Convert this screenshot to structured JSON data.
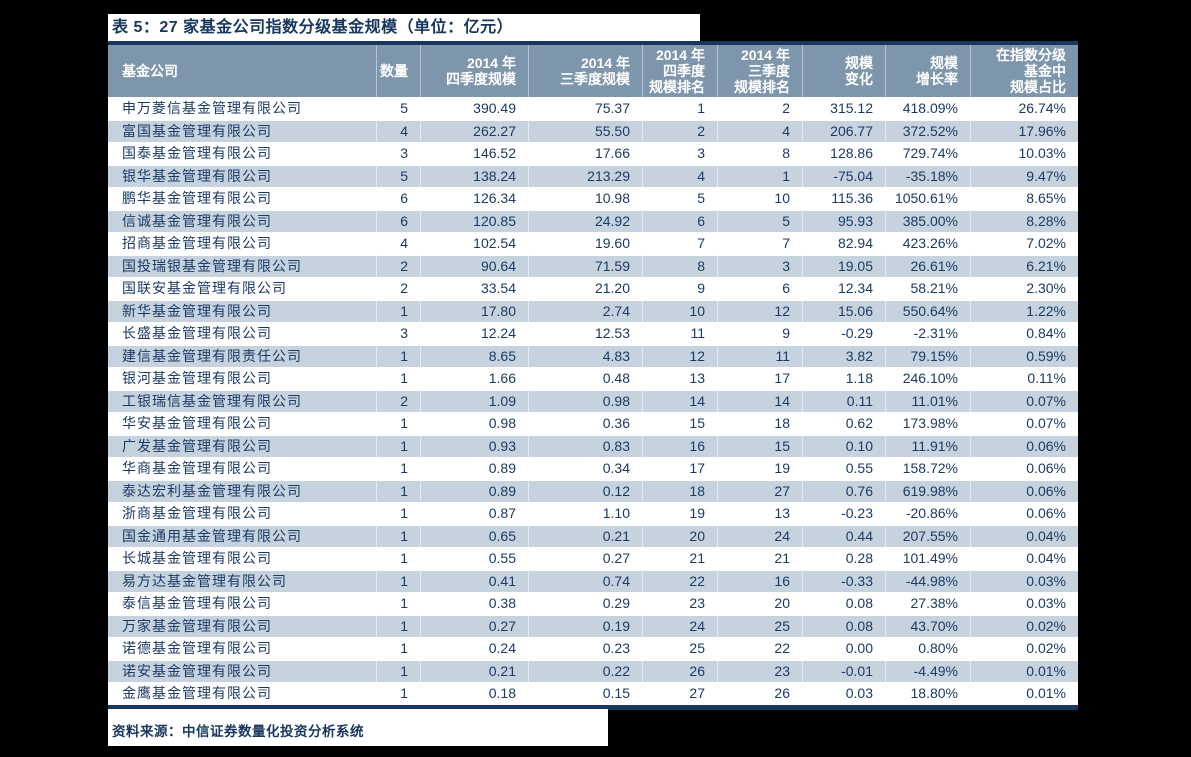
{
  "title": "表 5：27 家基金公司指数分级基金规模（单位：亿元）",
  "colors": {
    "page_bg": "#000000",
    "panel_bg": "#FFFFFF",
    "title_text": "#17375E",
    "rule": "#17375E",
    "header_bg": "#7D96AC",
    "header_text": "#FFFFFF",
    "row_alt_bg": "#C6D3DF",
    "body_text": "#1B3A64"
  },
  "table": {
    "columns": [
      {
        "key": "fund-company",
        "label": "基金公司",
        "align": "left"
      },
      {
        "key": "fund-count",
        "label": "数量",
        "align": "right"
      },
      {
        "key": "q4-2014-scale",
        "label": "2014 年\n四季度规模",
        "align": "right"
      },
      {
        "key": "q3-2014-scale",
        "label": "2014 年\n三季度规模",
        "align": "right"
      },
      {
        "key": "q4-2014-rank",
        "label": "2014 年\n四季度\n规模排名",
        "align": "right"
      },
      {
        "key": "q3-2014-rank",
        "label": "2014 年\n三季度\n规模排名",
        "align": "right"
      },
      {
        "key": "scale-change",
        "label": "规模\n变化",
        "align": "right"
      },
      {
        "key": "scale-growth",
        "label": "规模\n增长率",
        "align": "right"
      },
      {
        "key": "index-share",
        "label": "在指数分级\n基金中\n规模占比",
        "align": "right"
      }
    ],
    "rows": [
      [
        "申万菱信基金管理有限公司",
        "5",
        "390.49",
        "75.37",
        "1",
        "2",
        "315.12",
        "418.09%",
        "26.74%"
      ],
      [
        "富国基金管理有限公司",
        "4",
        "262.27",
        "55.50",
        "2",
        "4",
        "206.77",
        "372.52%",
        "17.96%"
      ],
      [
        "国泰基金管理有限公司",
        "3",
        "146.52",
        "17.66",
        "3",
        "8",
        "128.86",
        "729.74%",
        "10.03%"
      ],
      [
        "银华基金管理有限公司",
        "5",
        "138.24",
        "213.29",
        "4",
        "1",
        "-75.04",
        "-35.18%",
        "9.47%"
      ],
      [
        "鹏华基金管理有限公司",
        "6",
        "126.34",
        "10.98",
        "5",
        "10",
        "115.36",
        "1050.61%",
        "8.65%"
      ],
      [
        "信诚基金管理有限公司",
        "6",
        "120.85",
        "24.92",
        "6",
        "5",
        "95.93",
        "385.00%",
        "8.28%"
      ],
      [
        "招商基金管理有限公司",
        "4",
        "102.54",
        "19.60",
        "7",
        "7",
        "82.94",
        "423.26%",
        "7.02%"
      ],
      [
        "国投瑞银基金管理有限公司",
        "2",
        "90.64",
        "71.59",
        "8",
        "3",
        "19.05",
        "26.61%",
        "6.21%"
      ],
      [
        "国联安基金管理有限公司",
        "2",
        "33.54",
        "21.20",
        "9",
        "6",
        "12.34",
        "58.21%",
        "2.30%"
      ],
      [
        "新华基金管理有限公司",
        "1",
        "17.80",
        "2.74",
        "10",
        "12",
        "15.06",
        "550.64%",
        "1.22%"
      ],
      [
        "长盛基金管理有限公司",
        "3",
        "12.24",
        "12.53",
        "11",
        "9",
        "-0.29",
        "-2.31%",
        "0.84%"
      ],
      [
        "建信基金管理有限责任公司",
        "1",
        "8.65",
        "4.83",
        "12",
        "11",
        "3.82",
        "79.15%",
        "0.59%"
      ],
      [
        "银河基金管理有限公司",
        "1",
        "1.66",
        "0.48",
        "13",
        "17",
        "1.18",
        "246.10%",
        "0.11%"
      ],
      [
        "工银瑞信基金管理有限公司",
        "2",
        "1.09",
        "0.98",
        "14",
        "14",
        "0.11",
        "11.01%",
        "0.07%"
      ],
      [
        "华安基金管理有限公司",
        "1",
        "0.98",
        "0.36",
        "15",
        "18",
        "0.62",
        "173.98%",
        "0.07%"
      ],
      [
        "广发基金管理有限公司",
        "1",
        "0.93",
        "0.83",
        "16",
        "15",
        "0.10",
        "11.91%",
        "0.06%"
      ],
      [
        "华商基金管理有限公司",
        "1",
        "0.89",
        "0.34",
        "17",
        "19",
        "0.55",
        "158.72%",
        "0.06%"
      ],
      [
        "泰达宏利基金管理有限公司",
        "1",
        "0.89",
        "0.12",
        "18",
        "27",
        "0.76",
        "619.98%",
        "0.06%"
      ],
      [
        "浙商基金管理有限公司",
        "1",
        "0.87",
        "1.10",
        "19",
        "13",
        "-0.23",
        "-20.86%",
        "0.06%"
      ],
      [
        "国金通用基金管理有限公司",
        "1",
        "0.65",
        "0.21",
        "20",
        "24",
        "0.44",
        "207.55%",
        "0.04%"
      ],
      [
        "长城基金管理有限公司",
        "1",
        "0.55",
        "0.27",
        "21",
        "21",
        "0.28",
        "101.49%",
        "0.04%"
      ],
      [
        "易方达基金管理有限公司",
        "1",
        "0.41",
        "0.74",
        "22",
        "16",
        "-0.33",
        "-44.98%",
        "0.03%"
      ],
      [
        "泰信基金管理有限公司",
        "1",
        "0.38",
        "0.29",
        "23",
        "20",
        "0.08",
        "27.38%",
        "0.03%"
      ],
      [
        "万家基金管理有限公司",
        "1",
        "0.27",
        "0.19",
        "24",
        "25",
        "0.08",
        "43.70%",
        "0.02%"
      ],
      [
        "诺德基金管理有限公司",
        "1",
        "0.24",
        "0.23",
        "25",
        "22",
        "0.00",
        "0.80%",
        "0.02%"
      ],
      [
        "诺安基金管理有限公司",
        "1",
        "0.21",
        "0.22",
        "26",
        "23",
        "-0.01",
        "-4.49%",
        "0.01%"
      ],
      [
        "金鹰基金管理有限公司",
        "1",
        "0.18",
        "0.15",
        "27",
        "26",
        "0.03",
        "18.80%",
        "0.01%"
      ]
    ]
  },
  "footer": {
    "source": "资料来源：中信证券数量化投资分析系统"
  }
}
